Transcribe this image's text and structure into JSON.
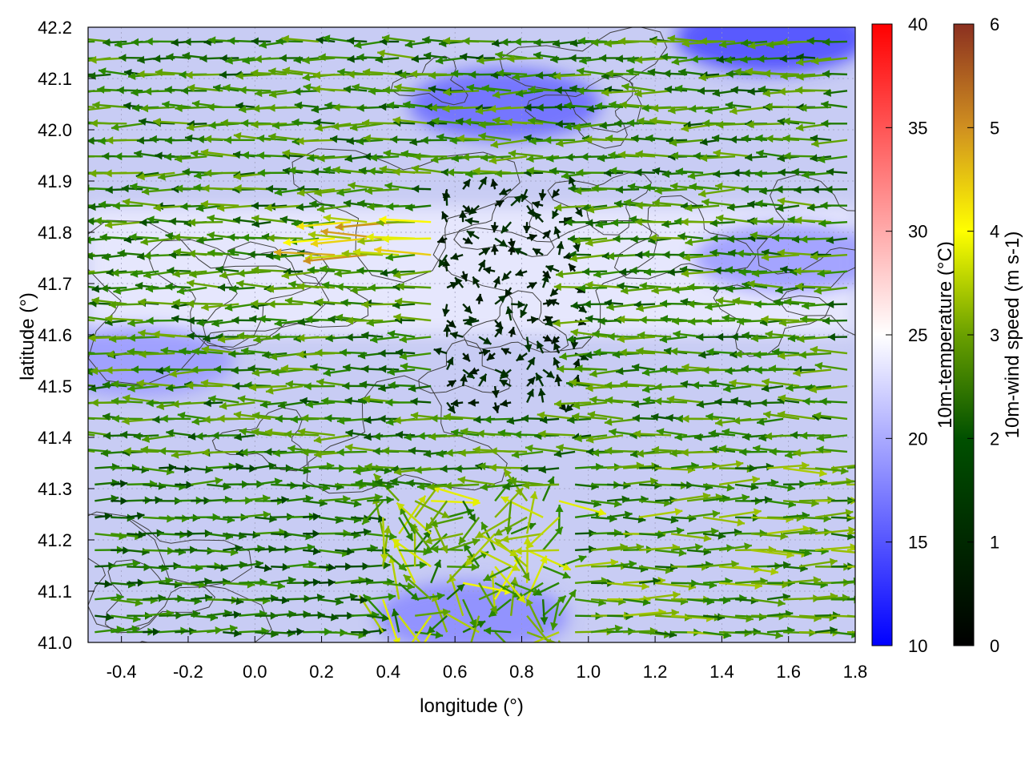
{
  "chart_data": {
    "type": "heatmap",
    "title": "",
    "xlabel": "longitude (°)",
    "ylabel": "latitude (°)",
    "xlim": [
      -0.5,
      1.8
    ],
    "ylim": [
      41.0,
      42.2
    ],
    "xticks": [
      "-0.4",
      "-0.2",
      "0.0",
      "0.2",
      "0.4",
      "0.6",
      "0.8",
      "1.0",
      "1.2",
      "1.4",
      "1.6",
      "1.8"
    ],
    "yticks": [
      "41.0",
      "41.1",
      "41.2",
      "41.3",
      "41.4",
      "41.5",
      "41.6",
      "41.7",
      "41.8",
      "41.9",
      "42.0",
      "42.1",
      "42.2"
    ],
    "grid": true,
    "field": {
      "name": "10m-temperature",
      "colorbar_label": "10m-temperature (°C)",
      "range": [
        10,
        40
      ],
      "colorbar_ticks": [
        "10",
        "15",
        "20",
        "25",
        "30",
        "35",
        "40"
      ],
      "colormap": [
        "#0000ff",
        "#ffffff",
        "#ff0000"
      ],
      "typical_range": [
        15,
        24
      ],
      "warm_band_lat": [
        41.6,
        41.85
      ],
      "cold_spots": [
        {
          "lon": 1.55,
          "lat": 42.18,
          "value": 14
        },
        {
          "lon": 0.75,
          "lat": 42.05,
          "value": 16
        },
        {
          "lon": 1.6,
          "lat": 41.75,
          "value": 19
        },
        {
          "lon": 0.65,
          "lat": 41.05,
          "value": 18
        },
        {
          "lon": -0.35,
          "lat": 41.55,
          "value": 19
        }
      ]
    },
    "vectors": {
      "name": "10m-wind speed",
      "colorbar_label": "10m-wind speed (m s-1)",
      "range": [
        0,
        6
      ],
      "colorbar_ticks": [
        "0",
        "1",
        "2",
        "3",
        "4",
        "5",
        "6"
      ],
      "colormap": [
        "#000000",
        "#004400",
        "#2a8a00",
        "#7fb000",
        "#ffff00",
        "#d4a020",
        "#8b3020"
      ],
      "regions": [
        {
          "lat": [
            41.35,
            42.2
          ],
          "lon": [
            -0.5,
            1.8
          ],
          "direction": "westward",
          "speed": 2.2
        },
        {
          "lat": [
            41.0,
            41.35
          ],
          "lon": [
            -0.5,
            0.35
          ],
          "direction": "eastward",
          "speed": 1.8
        },
        {
          "lat": [
            41.0,
            41.35
          ],
          "lon": [
            0.95,
            1.8
          ],
          "direction": "eastward",
          "speed": 2.6
        },
        {
          "lat": [
            41.0,
            41.3
          ],
          "lon": [
            0.35,
            0.95
          ],
          "direction": "variable",
          "speed": 3.0
        },
        {
          "lat": [
            41.75,
            41.85
          ],
          "lon": [
            0.2,
            0.6
          ],
          "direction": "westward",
          "speed": 4.0
        },
        {
          "lat": [
            41.45,
            41.9
          ],
          "lon": [
            0.55,
            1.0
          ],
          "direction": "light",
          "speed": 0.6
        }
      ]
    },
    "contours": {
      "color": "#404040",
      "levels": 7
    }
  }
}
